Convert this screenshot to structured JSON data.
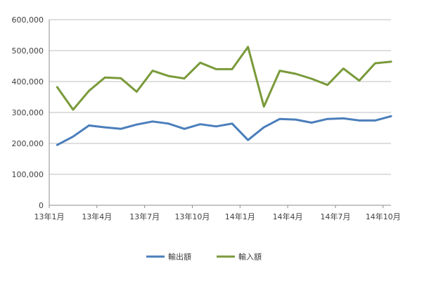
{
  "chart_data": {
    "type": "line",
    "x": [
      "13年1月",
      "13年2月",
      "13年3月",
      "13年4月",
      "13年5月",
      "13年6月",
      "13年7月",
      "13年8月",
      "13年9月",
      "13年10月",
      "13年11月",
      "13年12月",
      "14年1月",
      "14年2月",
      "14年3月",
      "14年4月",
      "14年5月",
      "14年6月",
      "14年7月",
      "14年8月",
      "14年9月",
      "14年10月"
    ],
    "x_tick_labels": [
      "13年1月",
      "13年4月",
      "13年7月",
      "13年10月",
      "14年1月",
      "14年4月",
      "14年7月",
      "14年10月"
    ],
    "y_tick_labels": [
      "0",
      "100,000",
      "200,000",
      "300,000",
      "400,000",
      "500,000",
      "600,000"
    ],
    "ylim": [
      0,
      600000
    ],
    "grid": true,
    "legend_position": "bottom",
    "series": [
      {
        "name": "輸出額",
        "color": "#4a7ebb",
        "values": [
          195000,
          222000,
          258000,
          252000,
          247000,
          261000,
          271000,
          264000,
          247000,
          262000,
          255000,
          264000,
          211000,
          252000,
          279000,
          277000,
          267000,
          279000,
          281000,
          274000,
          274000,
          288000
        ]
      },
      {
        "name": "輸入額",
        "color": "#7a9a3a",
        "values": [
          382000,
          309000,
          370000,
          413000,
          411000,
          367000,
          435000,
          418000,
          410000,
          461000,
          440000,
          440000,
          512000,
          319000,
          435000,
          425000,
          409000,
          389000,
          442000,
          403000,
          459000,
          464000
        ]
      }
    ]
  }
}
